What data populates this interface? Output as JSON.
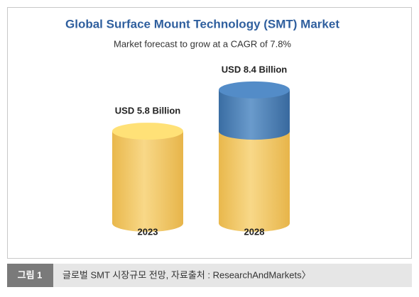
{
  "chart_data": {
    "type": "cylinder",
    "title": "Global Surface Mount Technology (SMT) Market",
    "subtitle": "Market forecast to grow at a CAGR of 7.8%",
    "categories": [
      "2023",
      "2028"
    ],
    "values": [
      5.8,
      8.4
    ],
    "value_labels": [
      "USD 5.8 Billion",
      "USD 8.4 Billion"
    ],
    "colors": [
      "#f3c96a",
      "#4a7db3"
    ]
  },
  "caption": {
    "label": "그림 1",
    "text": "글로벌 SMT 시장규모 전망, 자료출처 : ResearchAndMarkets〉"
  }
}
